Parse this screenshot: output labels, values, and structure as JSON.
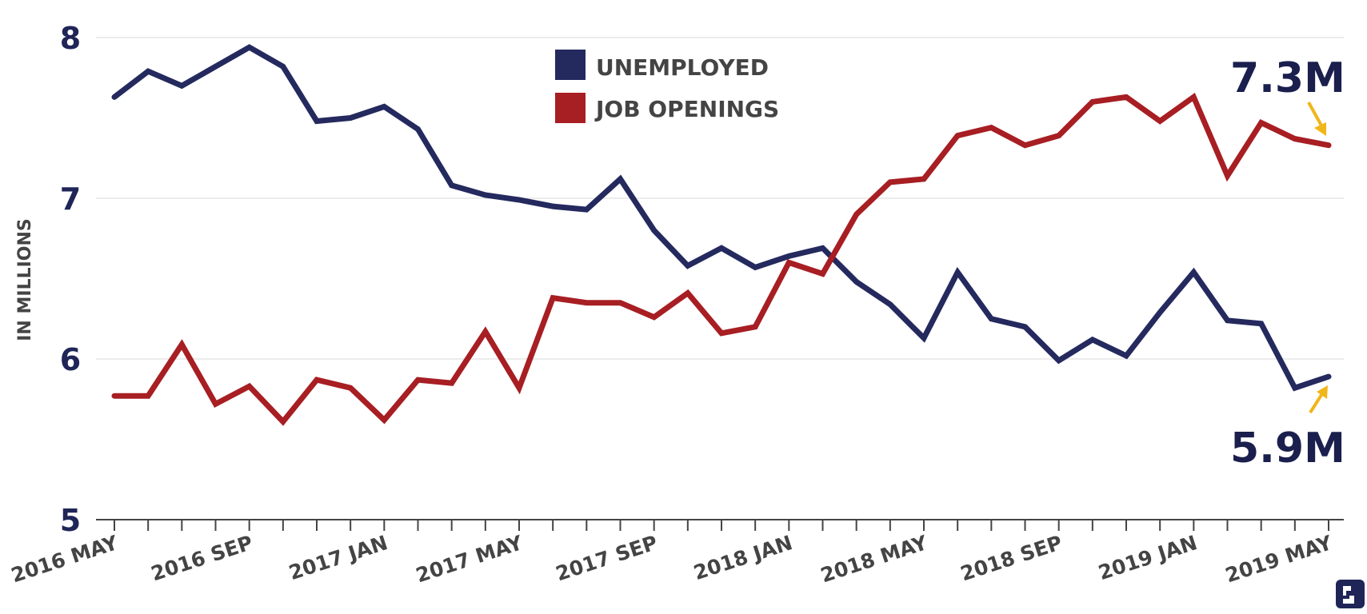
{
  "chart_data": {
    "type": "line",
    "x": [
      "2016 MAY",
      "2016 JUN",
      "2016 JUL",
      "2016 AUG",
      "2016 SEP",
      "2016 OCT",
      "2016 NOV",
      "2016 DEC",
      "2017 JAN",
      "2017 FEB",
      "2017 MAR",
      "2017 APR",
      "2017 MAY",
      "2017 JUN",
      "2017 JUL",
      "2017 AUG",
      "2017 SEP",
      "2017 OCT",
      "2017 NOV",
      "2017 DEC",
      "2018 JAN",
      "2018 FEB",
      "2018 MAR",
      "2018 APR",
      "2018 MAY",
      "2018 JUN",
      "2018 JUL",
      "2018 AUG",
      "2018 SEP",
      "2018 OCT",
      "2018 NOV",
      "2018 DEC",
      "2019 JAN",
      "2019 FEB",
      "2019 MAR",
      "2019 APR",
      "2019 MAY"
    ],
    "tick_labels": [
      "2016 MAY",
      "2016 SEP",
      "2017 JAN",
      "2017 MAY",
      "2017 SEP",
      "2018 JAN",
      "2018 MAY",
      "2018 SEP",
      "2019 JAN",
      "2019 MAY"
    ],
    "tick_label_indices": [
      0,
      4,
      8,
      12,
      16,
      20,
      24,
      28,
      32,
      36
    ],
    "series": [
      {
        "name": "UNEMPLOYED",
        "color": "#24295e",
        "values": [
          7.63,
          7.79,
          7.7,
          7.82,
          7.94,
          7.82,
          7.48,
          7.5,
          7.57,
          7.43,
          7.08,
          7.02,
          6.99,
          6.95,
          6.93,
          7.12,
          6.8,
          6.58,
          6.69,
          6.57,
          6.64,
          6.69,
          6.48,
          6.34,
          6.13,
          6.54,
          6.25,
          6.2,
          5.99,
          6.12,
          6.02,
          6.29,
          6.54,
          6.24,
          6.22,
          5.82,
          5.89
        ]
      },
      {
        "name": "JOB OPENINGS",
        "color": "#a71e23",
        "values": [
          5.77,
          5.77,
          6.09,
          5.72,
          5.83,
          5.61,
          5.87,
          5.82,
          5.62,
          5.87,
          5.85,
          6.17,
          5.82,
          6.38,
          6.35,
          6.35,
          6.26,
          6.41,
          6.16,
          6.2,
          6.6,
          6.53,
          6.9,
          7.1,
          7.12,
          7.39,
          7.44,
          7.33,
          7.39,
          7.6,
          7.63,
          7.48,
          7.63,
          7.14,
          7.47,
          7.37,
          7.33
        ]
      }
    ],
    "ylabel": "IN MILLIONS",
    "ylim": [
      5,
      8
    ],
    "yticks": [
      5,
      6,
      7,
      8
    ],
    "grid": true,
    "legend": {
      "placement": "top-center",
      "entries": [
        "UNEMPLOYED",
        "JOB OPENINGS"
      ]
    },
    "annotations": [
      {
        "text": "7.3M",
        "series": "JOB OPENINGS",
        "x": "2019 MAY",
        "color": "#1a1f4d",
        "arrow_color": "#f0b61a"
      },
      {
        "text": "5.9M",
        "series": "UNEMPLOYED",
        "x": "2019 MAY",
        "color": "#1a1f4d",
        "arrow_color": "#f0b61a"
      }
    ]
  }
}
